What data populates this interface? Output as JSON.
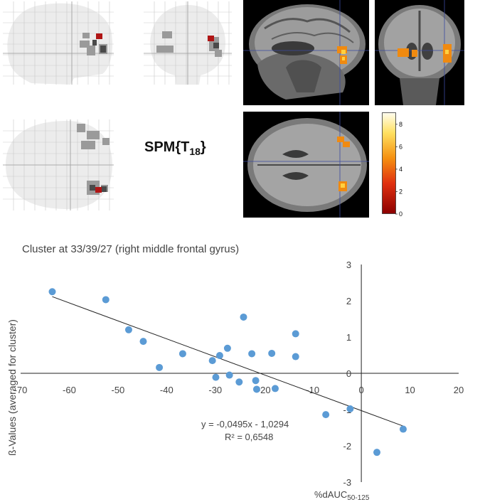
{
  "spm": {
    "prefix": "SPM{T",
    "sub": "18",
    "suffix": "}"
  },
  "colorbar": {
    "ticks": [
      "8",
      "6",
      "4",
      "2",
      "0"
    ],
    "min": 0,
    "max": 9
  },
  "chart_data": {
    "type": "scatter",
    "title": "Cluster at 33/39/27 (right middle frontal gyrus)",
    "ylabel": "ß-Values (averaged for cluster)",
    "xlabel_main": "%dAUC",
    "xlabel_sub": "50-125",
    "xlim": [
      -70,
      20
    ],
    "ylim": [
      -3,
      3
    ],
    "xticks": [
      "-70",
      "-60",
      "-50",
      "-40",
      "-30",
      "-20",
      "-10",
      "0",
      "10",
      "20"
    ],
    "yticks": [
      "3",
      "2",
      "1",
      "0",
      "-1",
      "-2",
      "-3"
    ],
    "points": [
      {
        "x": -63.5,
        "y": 2.25
      },
      {
        "x": -52.5,
        "y": 2.03
      },
      {
        "x": -47.8,
        "y": 1.2
      },
      {
        "x": -44.8,
        "y": 0.88
      },
      {
        "x": -41.5,
        "y": 0.16
      },
      {
        "x": -36.7,
        "y": 0.54
      },
      {
        "x": -30.6,
        "y": 0.35
      },
      {
        "x": -29.9,
        "y": -0.11
      },
      {
        "x": -29.1,
        "y": 0.49
      },
      {
        "x": -27.5,
        "y": 0.69
      },
      {
        "x": -27.1,
        "y": -0.05
      },
      {
        "x": -25.1,
        "y": -0.24
      },
      {
        "x": -24.2,
        "y": 1.55
      },
      {
        "x": -22.5,
        "y": 0.54
      },
      {
        "x": -21.7,
        "y": -0.2
      },
      {
        "x": -21.5,
        "y": -0.44
      },
      {
        "x": -18.4,
        "y": 0.55
      },
      {
        "x": -17.7,
        "y": -0.42
      },
      {
        "x": -13.5,
        "y": 1.09
      },
      {
        "x": -13.5,
        "y": 0.46
      },
      {
        "x": -7.3,
        "y": -1.14
      },
      {
        "x": -2.3,
        "y": -0.98
      },
      {
        "x": 3.2,
        "y": -2.18
      },
      {
        "x": 8.6,
        "y": -1.54
      }
    ],
    "trendline": {
      "slope": -0.0495,
      "intercept": -1.0294,
      "x_from": -63.5,
      "x_to": 8.6
    },
    "equation": "y = -0,0495x - 1,0294",
    "r2": "R² = 0,6548",
    "point_color": "#5b9bd5"
  }
}
